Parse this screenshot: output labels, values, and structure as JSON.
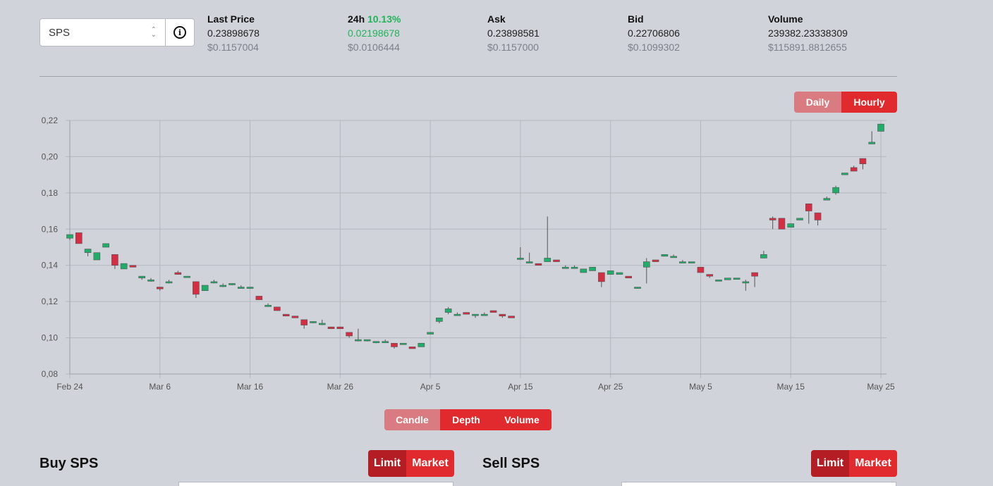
{
  "token": {
    "selected": "SPS",
    "info_icon": "info-circle-icon",
    "arrows_icon": "up-down-arrows-icon"
  },
  "stats": {
    "last_price": {
      "label": "Last Price",
      "value": "0.23898678",
      "usd": "$0.1157004"
    },
    "change24h": {
      "label": "24h",
      "pct": "10.13%",
      "value": "0.02198678",
      "usd": "$0.0106444"
    },
    "ask": {
      "label": "Ask",
      "value": "0.23898581",
      "usd": "$0.1157000"
    },
    "bid": {
      "label": "Bid",
      "value": "0.22706806",
      "usd": "$0.1099302"
    },
    "volume": {
      "label": "Volume",
      "value": "239382.23338309",
      "usd": "$115891.8812655"
    }
  },
  "interval": {
    "daily": "Daily",
    "hourly": "Hourly",
    "active": "Hourly"
  },
  "chart_tabs": {
    "candle": "Candle",
    "depth": "Depth",
    "volume": "Volume"
  },
  "buy": {
    "title": "Buy SPS",
    "limit": "Limit",
    "market": "Market"
  },
  "sell": {
    "title": "Sell SPS",
    "limit": "Limit",
    "market": "Market"
  },
  "colors": {
    "up": "#1fae6a",
    "down": "#d62d43",
    "accent": "#e02a2d"
  },
  "chart_data": {
    "type": "candlestick",
    "ylim": [
      0.08,
      0.22
    ],
    "yticks": [
      "0,08",
      "0,10",
      "0,12",
      "0,14",
      "0,16",
      "0,18",
      "0,20",
      "0,22"
    ],
    "xticks": [
      "Feb 24",
      "Mar 6",
      "Mar 16",
      "Mar 26",
      "Apr 5",
      "Apr 15",
      "Apr 25",
      "May 5",
      "May 15",
      "May 25"
    ],
    "grid": true,
    "candles": [
      [
        0,
        0.155,
        0.157,
        0.157,
        0.154
      ],
      [
        1,
        0.158,
        0.152,
        0.158,
        0.152
      ],
      [
        2,
        0.147,
        0.149,
        0.149,
        0.145
      ],
      [
        3,
        0.143,
        0.147,
        0.147,
        0.143
      ],
      [
        4,
        0.15,
        0.152,
        0.152,
        0.15
      ],
      [
        5,
        0.146,
        0.14,
        0.146,
        0.138
      ],
      [
        6,
        0.138,
        0.141,
        0.141,
        0.138
      ],
      [
        7,
        0.14,
        0.139,
        0.14,
        0.139
      ],
      [
        8,
        0.133,
        0.134,
        0.134,
        0.132
      ],
      [
        9,
        0.132,
        0.132,
        0.133,
        0.131
      ],
      [
        10,
        0.128,
        0.127,
        0.128,
        0.126
      ],
      [
        11,
        0.131,
        0.131,
        0.132,
        0.13
      ],
      [
        12,
        0.136,
        0.135,
        0.137,
        0.135
      ],
      [
        13,
        0.134,
        0.134,
        0.134,
        0.134
      ],
      [
        14,
        0.131,
        0.124,
        0.131,
        0.122
      ],
      [
        15,
        0.126,
        0.129,
        0.129,
        0.126
      ],
      [
        16,
        0.131,
        0.131,
        0.132,
        0.13
      ],
      [
        17,
        0.129,
        0.129,
        0.13,
        0.128
      ],
      [
        18,
        0.13,
        0.13,
        0.13,
        0.129
      ],
      [
        19,
        0.128,
        0.128,
        0.129,
        0.128
      ],
      [
        20,
        0.128,
        0.128,
        0.128,
        0.127
      ],
      [
        21,
        0.123,
        0.121,
        0.123,
        0.121
      ],
      [
        22,
        0.118,
        0.118,
        0.119,
        0.118
      ],
      [
        23,
        0.117,
        0.115,
        0.117,
        0.115
      ],
      [
        24,
        0.113,
        0.112,
        0.113,
        0.112
      ],
      [
        25,
        0.112,
        0.111,
        0.112,
        0.111
      ],
      [
        26,
        0.11,
        0.107,
        0.11,
        0.105
      ],
      [
        27,
        0.109,
        0.109,
        0.109,
        0.108
      ],
      [
        28,
        0.108,
        0.108,
        0.11,
        0.107
      ],
      [
        29,
        0.106,
        0.105,
        0.106,
        0.105
      ],
      [
        30,
        0.106,
        0.105,
        0.106,
        0.105
      ],
      [
        31,
        0.103,
        0.101,
        0.103,
        0.1
      ],
      [
        32,
        0.099,
        0.099,
        0.105,
        0.098
      ],
      [
        33,
        0.099,
        0.099,
        0.099,
        0.098
      ],
      [
        34,
        0.098,
        0.098,
        0.098,
        0.097
      ],
      [
        35,
        0.098,
        0.098,
        0.099,
        0.098
      ],
      [
        36,
        0.097,
        0.095,
        0.097,
        0.094
      ],
      [
        37,
        0.097,
        0.097,
        0.097,
        0.097
      ],
      [
        38,
        0.095,
        0.094,
        0.095,
        0.094
      ],
      [
        39,
        0.095,
        0.097,
        0.097,
        0.095
      ],
      [
        40,
        0.102,
        0.103,
        0.103,
        0.102
      ],
      [
        41,
        0.109,
        0.111,
        0.111,
        0.108
      ],
      [
        42,
        0.114,
        0.116,
        0.117,
        0.113
      ],
      [
        43,
        0.113,
        0.113,
        0.114,
        0.113
      ],
      [
        44,
        0.114,
        0.113,
        0.114,
        0.113
      ],
      [
        45,
        0.113,
        0.113,
        0.113,
        0.111
      ],
      [
        46,
        0.113,
        0.113,
        0.114,
        0.113
      ],
      [
        47,
        0.115,
        0.114,
        0.115,
        0.114
      ],
      [
        48,
        0.113,
        0.112,
        0.113,
        0.111
      ],
      [
        49,
        0.112,
        0.111,
        0.112,
        0.111
      ],
      [
        50,
        0.144,
        0.144,
        0.15,
        0.143
      ],
      [
        51,
        0.142,
        0.142,
        0.147,
        0.142
      ],
      [
        52,
        0.141,
        0.14,
        0.141,
        0.14
      ],
      [
        53,
        0.142,
        0.144,
        0.167,
        0.142
      ],
      [
        54,
        0.143,
        0.142,
        0.143,
        0.142
      ],
      [
        55,
        0.139,
        0.139,
        0.14,
        0.139
      ],
      [
        56,
        0.139,
        0.139,
        0.14,
        0.139
      ],
      [
        57,
        0.136,
        0.138,
        0.138,
        0.136
      ],
      [
        58,
        0.137,
        0.139,
        0.139,
        0.137
      ],
      [
        59,
        0.136,
        0.131,
        0.136,
        0.128
      ],
      [
        60,
        0.135,
        0.137,
        0.137,
        0.135
      ],
      [
        61,
        0.135,
        0.136,
        0.136,
        0.135
      ],
      [
        62,
        0.134,
        0.133,
        0.134,
        0.133
      ],
      [
        63,
        0.128,
        0.128,
        0.128,
        0.128
      ],
      [
        64,
        0.139,
        0.142,
        0.144,
        0.13
      ],
      [
        65,
        0.143,
        0.142,
        0.143,
        0.142
      ],
      [
        66,
        0.145,
        0.146,
        0.146,
        0.145
      ],
      [
        67,
        0.145,
        0.145,
        0.146,
        0.145
      ],
      [
        68,
        0.142,
        0.142,
        0.143,
        0.142
      ],
      [
        69,
        0.142,
        0.142,
        0.142,
        0.142
      ],
      [
        70,
        0.139,
        0.136,
        0.139,
        0.136
      ],
      [
        71,
        0.135,
        0.134,
        0.135,
        0.133
      ],
      [
        72,
        0.132,
        0.132,
        0.132,
        0.132
      ],
      [
        73,
        0.132,
        0.133,
        0.133,
        0.132
      ],
      [
        74,
        0.133,
        0.133,
        0.133,
        0.133
      ],
      [
        75,
        0.131,
        0.131,
        0.132,
        0.126
      ],
      [
        76,
        0.136,
        0.134,
        0.136,
        0.128
      ],
      [
        77,
        0.144,
        0.146,
        0.148,
        0.144
      ],
      [
        78,
        0.166,
        0.165,
        0.167,
        0.16
      ],
      [
        79,
        0.166,
        0.16,
        0.166,
        0.16
      ],
      [
        80,
        0.161,
        0.163,
        0.163,
        0.161
      ],
      [
        81,
        0.165,
        0.166,
        0.166,
        0.165
      ],
      [
        82,
        0.174,
        0.17,
        0.174,
        0.163
      ],
      [
        83,
        0.169,
        0.165,
        0.169,
        0.162
      ],
      [
        84,
        0.176,
        0.177,
        0.178,
        0.176
      ],
      [
        85,
        0.18,
        0.183,
        0.184,
        0.179
      ],
      [
        86,
        0.19,
        0.191,
        0.191,
        0.19
      ],
      [
        87,
        0.194,
        0.192,
        0.195,
        0.192
      ],
      [
        88,
        0.199,
        0.196,
        0.199,
        0.193
      ],
      [
        89,
        0.207,
        0.208,
        0.214,
        0.207
      ],
      [
        90,
        0.214,
        0.218,
        0.218,
        0.214
      ]
    ]
  }
}
